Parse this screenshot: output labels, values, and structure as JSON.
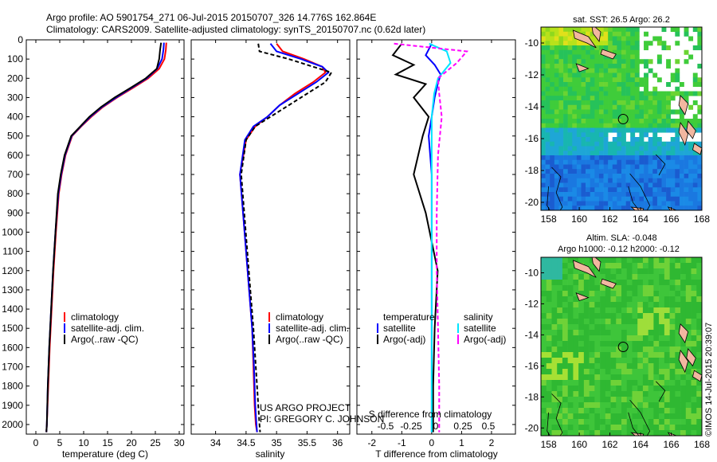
{
  "header": {
    "line1": "Argo profile: AO 5901754_271 06-Jul-2015 20150707_326 14.776S 162.864E",
    "line2": "Climatology: CARS2009. Satellite-adjusted climatology: synTS_20150707.nc (0.62d later)"
  },
  "colors": {
    "climatology": "#ff0000",
    "satellite": "#0000ff",
    "argo": "#000000",
    "salinity_satellite": "#00e5ff",
    "salinity_argo": "#ff00ff"
  },
  "chart_data": [
    {
      "type": "line",
      "id": "temperature",
      "xlabel": "temperature (deg C)",
      "ylabel": "",
      "xlim": [
        -2,
        31
      ],
      "ylim": [
        2050,
        0
      ],
      "xticks": [
        0,
        5,
        10,
        15,
        20,
        25,
        30
      ],
      "yticks": [
        0,
        100,
        200,
        300,
        400,
        500,
        600,
        700,
        800,
        900,
        1000,
        1100,
        1200,
        1300,
        1400,
        1500,
        1600,
        1700,
        1800,
        1900,
        2000
      ],
      "legend": [
        "climatology",
        "satellite-adj. clim.",
        "Argo(..raw -QC)"
      ],
      "series": [
        {
          "name": "climatology",
          "x": [
            27.3,
            27.2,
            26.9,
            25.8,
            23.5,
            20.3,
            17.0,
            14.0,
            11.6,
            9.5,
            7.6,
            6.2,
            5.4,
            4.8,
            4.2,
            3.7,
            3.3,
            2.9,
            2.6,
            2.3,
            2.2
          ],
          "y": [
            15,
            50,
            100,
            150,
            200,
            250,
            300,
            350,
            400,
            450,
            500,
            600,
            700,
            800,
            1000,
            1200,
            1400,
            1600,
            1800,
            2000,
            2040
          ]
        },
        {
          "name": "satellite-adj. clim.",
          "x": [
            26.8,
            26.7,
            26.4,
            25.4,
            23.2,
            20.0,
            16.8,
            13.8,
            11.4,
            9.4,
            7.5,
            6.1,
            5.3,
            4.7,
            4.1,
            3.6,
            3.2,
            2.8,
            2.5,
            2.3,
            2.2
          ],
          "y": [
            15,
            50,
            100,
            150,
            200,
            250,
            300,
            350,
            400,
            450,
            500,
            600,
            700,
            800,
            1000,
            1200,
            1400,
            1600,
            1800,
            2000,
            2040
          ]
        },
        {
          "name": "Argo(..raw -QC)",
          "x": [
            26.2,
            26.0,
            25.8,
            25.3,
            23.0,
            19.8,
            16.5,
            13.6,
            11.2,
            9.3,
            7.4,
            6.0,
            5.2,
            4.6,
            4.1,
            3.6,
            3.2,
            2.8,
            2.5,
            2.3,
            2.2
          ],
          "y": [
            15,
            50,
            100,
            150,
            200,
            250,
            300,
            350,
            400,
            450,
            500,
            600,
            700,
            800,
            1000,
            1200,
            1400,
            1600,
            1800,
            2000,
            2040
          ]
        }
      ]
    },
    {
      "type": "line",
      "id": "salinity",
      "xlabel": "salinity",
      "ylabel": "",
      "xlim": [
        33.6,
        36.2
      ],
      "ylim": [
        2050,
        0
      ],
      "xticks": [
        34,
        34.5,
        35,
        35.5,
        36
      ],
      "legend": [
        "climatology",
        "satellite-adj. clim.",
        "Argo(..raw -QC)"
      ],
      "annotation": [
        "US ARGO PROJECT",
        "PI: GREGORY C. JOHNSON"
      ],
      "series": [
        {
          "name": "climatology",
          "x": [
            35.0,
            35.1,
            35.45,
            35.75,
            35.8,
            35.6,
            35.3,
            35.05,
            34.85,
            34.65,
            34.5,
            34.4,
            34.45,
            34.5,
            34.55,
            34.6,
            34.62,
            34.64,
            34.66,
            34.68
          ],
          "y": [
            20,
            60,
            100,
            140,
            170,
            220,
            280,
            340,
            400,
            450,
            520,
            700,
            900,
            1100,
            1300,
            1500,
            1700,
            1900,
            2000,
            2040
          ]
        },
        {
          "name": "satellite-adj. clim.",
          "x": [
            34.9,
            35.0,
            35.4,
            35.75,
            35.85,
            35.65,
            35.35,
            35.05,
            34.85,
            34.62,
            34.48,
            34.4,
            34.45,
            34.5,
            34.55,
            34.6,
            34.63,
            34.65,
            34.67,
            34.68
          ],
          "y": [
            20,
            60,
            100,
            140,
            170,
            220,
            280,
            340,
            400,
            450,
            520,
            700,
            900,
            1100,
            1300,
            1500,
            1700,
            1900,
            2000,
            2040
          ]
        },
        {
          "name": "Argo(..raw -QC)",
          "x": [
            34.7,
            34.72,
            35.2,
            35.6,
            35.9,
            35.8,
            35.5,
            35.2,
            34.9,
            34.65,
            34.5,
            34.42,
            34.47,
            34.52,
            34.57,
            34.62,
            34.66,
            34.7,
            34.72,
            34.73
          ],
          "y": [
            20,
            60,
            100,
            140,
            170,
            220,
            280,
            340,
            400,
            450,
            520,
            700,
            900,
            1100,
            1300,
            1500,
            1700,
            1900,
            2000,
            2040
          ]
        }
      ]
    },
    {
      "type": "line",
      "id": "difference",
      "xlabel": "T difference from climatology",
      "xlabel_top": "S difference from climatology",
      "ylabel": "",
      "xlim": [
        -2.5,
        2.8
      ],
      "ylim": [
        2050,
        0
      ],
      "xticks": [
        -2,
        -1,
        0,
        1,
        2
      ],
      "xticks_top": [
        "-0.5",
        "-0.25",
        "0",
        "0.25",
        "0.5"
      ],
      "legend_temperature": [
        "temperature",
        "satellite",
        "Argo(-adj)"
      ],
      "legend_salinity": [
        "salinity",
        "satellite",
        "Argo(-adj)"
      ],
      "series": [
        {
          "name": "satellite",
          "group": "temperature",
          "x": [
            0.0,
            -0.2,
            0.1,
            0.3,
            0.2,
            0.1,
            0.0,
            -0.1,
            0.0,
            0.0,
            0.0,
            0.0,
            0.0,
            0.0
          ],
          "y": [
            20,
            80,
            130,
            180,
            230,
            300,
            400,
            500,
            700,
            900,
            1200,
            1500,
            1800,
            2040
          ]
        },
        {
          "name": "Argo(-adj)",
          "group": "temperature",
          "x": [
            -1.0,
            -1.3,
            -0.6,
            -1.2,
            -0.2,
            -0.6,
            -0.1,
            -0.3,
            -0.6,
            -0.2,
            0.2,
            0.1,
            0.05,
            0.05
          ],
          "y": [
            20,
            80,
            130,
            180,
            230,
            300,
            400,
            500,
            700,
            900,
            1200,
            1500,
            1800,
            2040
          ]
        },
        {
          "name": "satellite",
          "group": "salinity",
          "x": [
            -0.02,
            0.12,
            0.15,
            0.05,
            0.02,
            0.0,
            0.0,
            0.0,
            0.0,
            0.0,
            0.0,
            0.0
          ],
          "y": [
            20,
            60,
            120,
            200,
            280,
            400,
            600,
            900,
            1200,
            1500,
            1800,
            2040
          ]
        },
        {
          "name": "Argo(-adj)",
          "group": "salinity",
          "x": [
            -0.3,
            0.28,
            0.2,
            0.05,
            0.06,
            0.08,
            0.05,
            0.04,
            0.04,
            0.05,
            0.06,
            0.06
          ],
          "y": [
            20,
            60,
            120,
            200,
            280,
            400,
            600,
            900,
            1200,
            1500,
            1800,
            2040
          ]
        }
      ]
    },
    {
      "type": "heatmap",
      "id": "sst-map",
      "title": "sat. SST: 26.5 Argo: 26.2",
      "xlim": [
        157.5,
        168
      ],
      "ylim": [
        -20.5,
        -9
      ],
      "xticks": [
        158,
        160,
        162,
        164,
        166,
        168
      ],
      "yticks": [
        -10,
        -12,
        -14,
        -16,
        -18,
        -20
      ],
      "profile_location": [
        162.864,
        -14.776
      ]
    },
    {
      "type": "heatmap",
      "id": "sla-map",
      "title_line1": "Altim. SLA: -0.048",
      "title_line2": "Argo h1000: -0.12 h2000: -0.12",
      "xlim": [
        157.5,
        168
      ],
      "ylim": [
        -20.5,
        -9
      ],
      "xticks": [
        158,
        160,
        162,
        164,
        166,
        168
      ],
      "yticks": [
        -10,
        -12,
        -14,
        -16,
        -18,
        -20
      ],
      "profile_location": [
        162.864,
        -14.776
      ]
    }
  ],
  "side_stamp": "©IMOS 14-Jul-2015 20:39:07"
}
